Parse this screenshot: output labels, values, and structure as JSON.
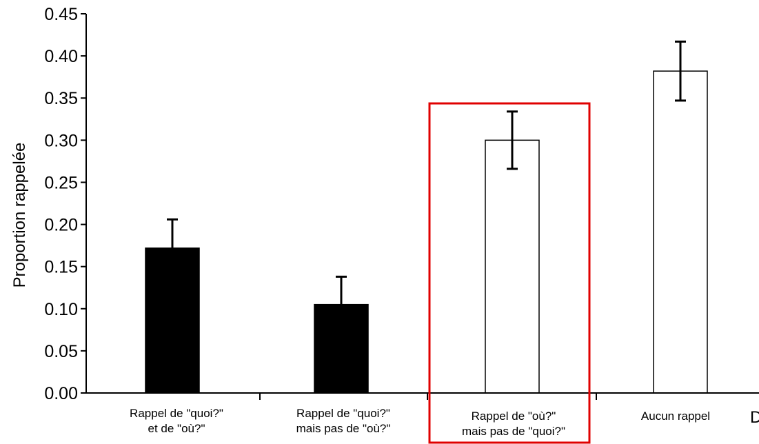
{
  "chart_data": {
    "type": "bar",
    "ylabel": "Proportion rappelée",
    "xlabel": "",
    "ylim": [
      0,
      0.45
    ],
    "yticks": [
      0.0,
      0.05,
      0.1,
      0.15,
      0.2,
      0.25,
      0.3,
      0.35,
      0.4,
      0.45
    ],
    "ytick_labels": [
      "0.00",
      "0.05",
      "0.10",
      "0.15",
      "0.20",
      "0.25",
      "0.30",
      "0.35",
      "0.40",
      "0.45"
    ],
    "categories": [
      [
        "Rappel de \"quoi?\"",
        "et de \"où?\""
      ],
      [
        "Rappel de \"quoi?\"",
        "mais pas de \"où?\""
      ],
      [
        "Rappel de \"où?\"",
        "mais pas de \"quoi?\""
      ],
      [
        "Aucun rappel"
      ]
    ],
    "values": [
      0.172,
      0.105,
      0.3,
      0.382
    ],
    "errors": [
      0.034,
      0.033,
      0.034,
      0.035
    ],
    "bar_fills": [
      "#000000",
      "#000000",
      "#ffffff",
      "#ffffff"
    ],
    "highlight_index": 2,
    "highlight_color": "#e00000",
    "grid": false,
    "edge_fragment": "D"
  }
}
